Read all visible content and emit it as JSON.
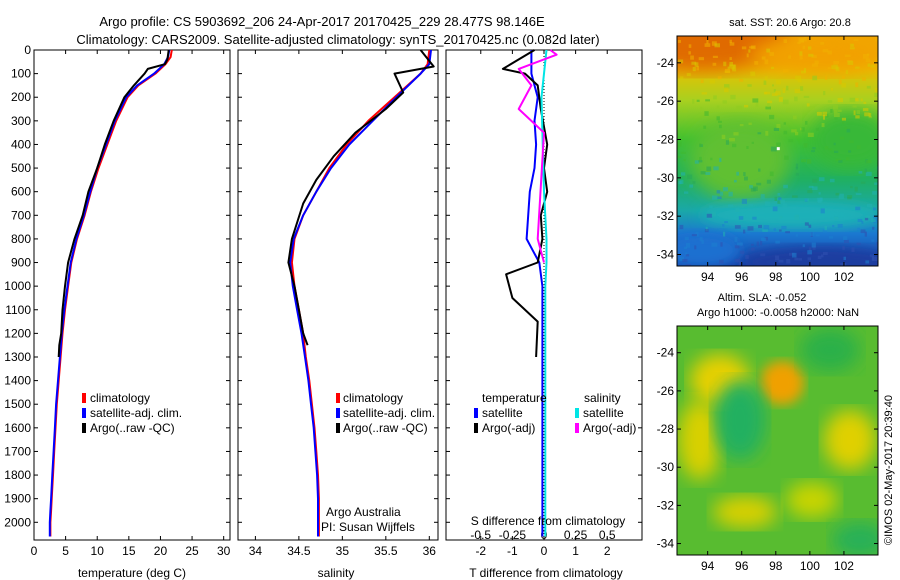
{
  "figure": {
    "title_line1": "Argo profile: CS 5903692_206 24-Apr-2017 20170425_229 28.477S 98.146E",
    "title_line2": "Climatology: CARS2009. Satellite-adjusted climatology: synTS_20170425.nc (0.082d later)",
    "credit": "©IMOS 02-May-2017 20:39:40"
  },
  "colors": {
    "climatology": "#ff0000",
    "satellite_adj": "#0000ff",
    "argo": "#000000",
    "sal_satellite": "#00e5e5",
    "sal_argo": "#ff00ff"
  },
  "chart_data": [
    {
      "type": "line",
      "panel": "temperature",
      "xlabel": "temperature (deg C)",
      "ylabel": "",
      "xlim": [
        0,
        31
      ],
      "ylim": [
        2075,
        0
      ],
      "y_reversed": true,
      "xticks": [
        0,
        5,
        10,
        15,
        20,
        25,
        30
      ],
      "yticks": [
        0,
        100,
        200,
        300,
        400,
        500,
        600,
        700,
        800,
        900,
        1000,
        1100,
        1200,
        1300,
        1400,
        1500,
        1600,
        1700,
        1800,
        1900,
        2000
      ],
      "legend": [
        "climatology",
        "satellite-adj. clim.",
        "Argo(..raw -QC)"
      ],
      "legend_position": "lower-center",
      "series": [
        {
          "name": "climatology",
          "color": "#ff0000",
          "x": [
            21.8,
            21.6,
            20.8,
            19.2,
            16.5,
            14.8,
            13.0,
            11.6,
            10.2,
            9.0,
            8.0,
            6.8,
            5.9,
            5.4,
            4.9,
            4.5,
            4.2,
            3.9,
            3.6,
            3.4,
            3.2,
            3.0,
            2.8,
            2.7,
            2.6,
            2.6,
            2.6
          ],
          "y": [
            0,
            30,
            60,
            100,
            150,
            200,
            300,
            400,
            500,
            600,
            700,
            800,
            900,
            1000,
            1100,
            1200,
            1300,
            1400,
            1500,
            1600,
            1700,
            1800,
            1900,
            1950,
            2000,
            2040,
            2060
          ]
        },
        {
          "name": "satellite-adj. clim.",
          "color": "#0000ff",
          "x": [
            21.4,
            21.2,
            20.6,
            19.0,
            16.3,
            14.6,
            12.8,
            11.4,
            10.0,
            8.9,
            7.9,
            6.7,
            5.8,
            5.3,
            4.8,
            4.4,
            4.1,
            3.8,
            3.5,
            3.3,
            3.1,
            2.9,
            2.7,
            2.6,
            2.5,
            2.5,
            2.5
          ],
          "y": [
            0,
            30,
            60,
            100,
            150,
            200,
            300,
            400,
            500,
            600,
            700,
            800,
            900,
            1000,
            1100,
            1200,
            1300,
            1400,
            1500,
            1600,
            1700,
            1800,
            1900,
            1950,
            2000,
            2040,
            2060
          ]
        },
        {
          "name": "Argo(..raw -QC)",
          "color": "#000000",
          "x": [
            21.3,
            21.1,
            20.7,
            18.0,
            17.5,
            15.8,
            14.3,
            12.6,
            11.2,
            10.0,
            8.6,
            7.7,
            6.4,
            5.4,
            4.9,
            4.5,
            4.3,
            4.0,
            3.9
          ],
          "y": [
            0,
            40,
            60,
            80,
            100,
            150,
            200,
            300,
            400,
            500,
            600,
            700,
            800,
            900,
            1000,
            1100,
            1200,
            1250,
            1300
          ]
        }
      ]
    },
    {
      "type": "line",
      "panel": "salinity",
      "xlabel": "salinity",
      "ylabel": "",
      "xlim": [
        33.8,
        36.1
      ],
      "ylim": [
        2075,
        0
      ],
      "y_reversed": true,
      "xticks": [
        34,
        34.5,
        35,
        35.5,
        36
      ],
      "legend": [
        "climatology",
        "satellite-adj. clim.",
        "Argo(..raw -QC)"
      ],
      "legend_position": "lower-center",
      "annotations": [
        "Argo Australia",
        "PI: Susan Wijffels"
      ],
      "series": [
        {
          "name": "climatology",
          "color": "#ff0000",
          "x": [
            36.0,
            35.98,
            35.9,
            35.6,
            35.3,
            35.05,
            34.85,
            34.7,
            34.55,
            34.45,
            34.42,
            34.45,
            34.5,
            34.55,
            34.58,
            34.62,
            34.65,
            34.68,
            34.7,
            34.72,
            34.73,
            34.73
          ],
          "y": [
            0,
            60,
            100,
            200,
            300,
            400,
            500,
            600,
            700,
            800,
            900,
            1000,
            1100,
            1200,
            1300,
            1400,
            1500,
            1600,
            1700,
            1800,
            1900,
            2060
          ]
        },
        {
          "name": "satellite-adj. clim.",
          "color": "#0000ff",
          "x": [
            36.02,
            36.0,
            35.9,
            35.62,
            35.35,
            35.08,
            34.87,
            34.7,
            34.55,
            34.44,
            34.4,
            34.43,
            34.48,
            34.53,
            34.57,
            34.61,
            34.64,
            34.67,
            34.69,
            34.71,
            34.72,
            34.72
          ],
          "y": [
            0,
            60,
            100,
            200,
            300,
            400,
            500,
            600,
            700,
            800,
            900,
            1000,
            1100,
            1200,
            1300,
            1400,
            1500,
            1600,
            1700,
            1800,
            1900,
            2060
          ]
        },
        {
          "name": "Argo(..raw -QC)",
          "color": "#000000",
          "x": [
            35.9,
            36.05,
            35.6,
            35.7,
            35.5,
            35.15,
            34.9,
            34.7,
            34.55,
            34.42,
            34.38,
            34.45,
            34.5,
            34.55,
            34.6
          ],
          "y": [
            0,
            70,
            100,
            180,
            250,
            350,
            450,
            550,
            650,
            800,
            900,
            1000,
            1100,
            1200,
            1250
          ]
        }
      ]
    },
    {
      "type": "line",
      "panel": "differences",
      "xlabel": "T difference from climatology",
      "top_label": "S difference from climatology",
      "xlim": [
        -3.1,
        3.1
      ],
      "ylim": [
        2075,
        0
      ],
      "y_reversed": true,
      "xticks_T": [
        -2,
        -1,
        0,
        1,
        2
      ],
      "xticks_S": [
        -0.5,
        -0.25,
        0,
        0.25,
        0.5
      ],
      "xtick_labels_S": [
        "-0.5",
        "-0.25",
        "0",
        "0.25",
        "0.5"
      ],
      "legend_groups": [
        {
          "title": "temperature",
          "items": [
            "satellite",
            "Argo(-adj)"
          ]
        },
        {
          "title": "salinity",
          "items": [
            "satellite",
            "Argo(-adj)"
          ]
        }
      ],
      "series": [
        {
          "name": "satellite",
          "group": "temperature",
          "color": "#0000ff",
          "x_T": [
            -0.4,
            -0.4,
            -0.3,
            -0.2,
            -0.3,
            -0.25,
            -0.3,
            -0.45,
            -0.5,
            -0.55,
            -0.35,
            -0.15,
            -0.05,
            -0.05,
            -0.05,
            -0.05
          ],
          "y": [
            0,
            100,
            150,
            200,
            300,
            400,
            500,
            600,
            700,
            800,
            850,
            900,
            1000,
            1200,
            1600,
            2060
          ]
        },
        {
          "name": "Argo(-adj)",
          "group": "temperature",
          "color": "#000000",
          "x_T": [
            -0.3,
            -1.3,
            -0.6,
            -0.2,
            -0.1,
            0.1,
            0.0,
            0.1,
            -0.1,
            -0.05,
            -0.2,
            -1.2,
            -1.0,
            -0.2,
            -0.25
          ],
          "y": [
            0,
            80,
            100,
            150,
            250,
            400,
            500,
            600,
            700,
            800,
            900,
            950,
            1050,
            1150,
            1300
          ]
        },
        {
          "name": "satellite",
          "group": "salinity",
          "color": "#00e5e5",
          "x_S": [
            0.02,
            0.0,
            -0.02,
            -0.01,
            0.0,
            0.02,
            0.02,
            0.01,
            0.01,
            0.01,
            0.01
          ],
          "y": [
            0,
            100,
            200,
            400,
            600,
            800,
            900,
            1000,
            1200,
            1600,
            2060
          ]
        },
        {
          "name": "Argo(-adj)",
          "group": "salinity",
          "color": "#ff00ff",
          "x_S": [
            0.05,
            0.1,
            -0.2,
            -0.1,
            -0.2,
            0.0,
            -0.05,
            0.0
          ],
          "y": [
            0,
            20,
            80,
            150,
            250,
            350,
            800,
            900
          ]
        }
      ]
    },
    {
      "type": "heatmap",
      "panel": "sst_map",
      "title": "sat. SST: 20.6 Argo: 20.8",
      "xticks": [
        94,
        96,
        98,
        100,
        102
      ],
      "yticks": [
        -24,
        -26,
        -28,
        -30,
        -32,
        -34
      ],
      "xlim": [
        92.2,
        104.0
      ],
      "ylim": [
        -34.6,
        -22.6
      ],
      "marker": {
        "lon": 98.146,
        "lat": -28.477
      }
    },
    {
      "type": "heatmap",
      "panel": "sla_map",
      "title_line1": "Altim. SLA: -0.052",
      "title_line2": "Argo h1000: -0.0058 h2000: NaN",
      "xticks": [
        94,
        96,
        98,
        100,
        102
      ],
      "yticks": [
        -24,
        -26,
        -28,
        -30,
        -32,
        -34
      ],
      "xlim": [
        92.2,
        104.0
      ],
      "ylim": [
        -34.6,
        -22.6
      ]
    }
  ]
}
